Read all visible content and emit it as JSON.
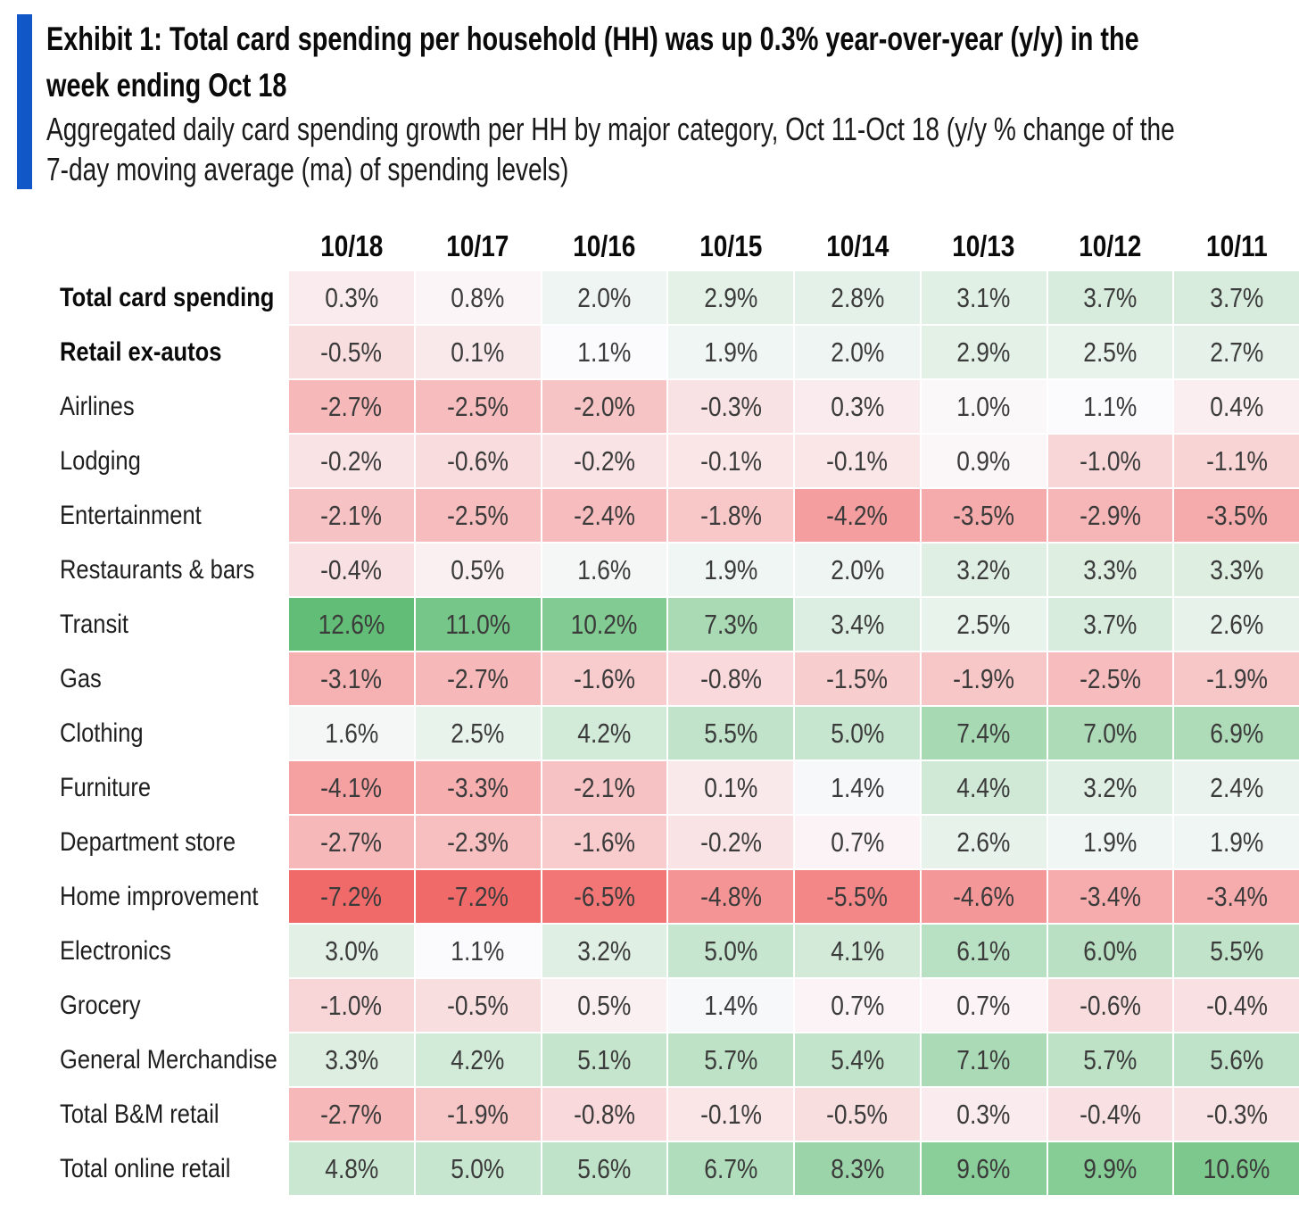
{
  "header": {
    "title_lines": [
      "Exhibit 1: Total card spending per household (HH) was up 0.3% year-over-year (y/y) in the",
      "week ending Oct 18"
    ],
    "subtitle_lines": [
      "Aggregated daily card spending growth per HH by major category, Oct 11-Oct 18 (y/y % change of the",
      "7-day moving average (ma) of spending levels)"
    ],
    "accent_color": "#1257c8"
  },
  "chart_data": {
    "type": "heatmap",
    "title": "Exhibit 1: Total card spending per household (HH) was up 0.3% year-over-year (y/y) in the week ending Oct 18",
    "subtitle": "Aggregated daily card spending growth per HH by major category, Oct 11-Oct 18 (y/y % change of the 7-day moving average (ma) of spending levels)",
    "unit": "% y/y change",
    "value_suffix": "%",
    "columns": [
      "10/18",
      "10/17",
      "10/16",
      "10/15",
      "10/14",
      "10/13",
      "10/12",
      "10/11"
    ],
    "rows": [
      {
        "label": "Total card spending",
        "bold": true,
        "values": [
          0.3,
          0.8,
          2.0,
          2.9,
          2.8,
          3.1,
          3.7,
          3.7
        ]
      },
      {
        "label": "Retail ex-autos",
        "bold": true,
        "values": [
          -0.5,
          0.1,
          1.1,
          1.9,
          2.0,
          2.9,
          2.5,
          2.7
        ]
      },
      {
        "label": "Airlines",
        "bold": false,
        "values": [
          -2.7,
          -2.5,
          -2.0,
          -0.3,
          0.3,
          1.0,
          1.1,
          0.4
        ]
      },
      {
        "label": "Lodging",
        "bold": false,
        "values": [
          -0.2,
          -0.6,
          -0.2,
          -0.1,
          -0.1,
          0.9,
          -1.0,
          -1.1
        ]
      },
      {
        "label": "Entertainment",
        "bold": false,
        "values": [
          -2.1,
          -2.5,
          -2.4,
          -1.8,
          -4.2,
          -3.5,
          -2.9,
          -3.5
        ]
      },
      {
        "label": "Restaurants & bars",
        "bold": false,
        "values": [
          -0.4,
          0.5,
          1.6,
          1.9,
          2.0,
          3.2,
          3.3,
          3.3
        ]
      },
      {
        "label": "Transit",
        "bold": false,
        "values": [
          12.6,
          11.0,
          10.2,
          7.3,
          3.4,
          2.5,
          3.7,
          2.6
        ]
      },
      {
        "label": "Gas",
        "bold": false,
        "values": [
          -3.1,
          -2.7,
          -1.6,
          -0.8,
          -1.5,
          -1.9,
          -2.5,
          -1.9
        ]
      },
      {
        "label": "Clothing",
        "bold": false,
        "values": [
          1.6,
          2.5,
          4.2,
          5.5,
          5.0,
          7.4,
          7.0,
          6.9
        ]
      },
      {
        "label": "Furniture",
        "bold": false,
        "values": [
          -4.1,
          -3.3,
          -2.1,
          0.1,
          1.4,
          4.4,
          3.2,
          2.4
        ]
      },
      {
        "label": "Department store",
        "bold": false,
        "values": [
          -2.7,
          -2.3,
          -1.6,
          -0.2,
          0.7,
          2.6,
          1.9,
          1.9
        ]
      },
      {
        "label": "Home improvement",
        "bold": false,
        "values": [
          -7.2,
          -7.2,
          -6.5,
          -4.8,
          -5.5,
          -4.6,
          -3.4,
          -3.4
        ]
      },
      {
        "label": "Electronics",
        "bold": false,
        "values": [
          3.0,
          1.1,
          3.2,
          5.0,
          4.1,
          6.1,
          6.0,
          5.5
        ]
      },
      {
        "label": "Grocery",
        "bold": false,
        "values": [
          -1.0,
          -0.5,
          0.5,
          1.4,
          0.7,
          0.7,
          -0.6,
          -0.4
        ]
      },
      {
        "label": "General Merchandise",
        "bold": false,
        "values": [
          3.3,
          4.2,
          5.1,
          5.7,
          5.4,
          7.1,
          5.7,
          5.6
        ]
      },
      {
        "label": "Total B&M retail",
        "bold": false,
        "values": [
          -2.7,
          -1.9,
          -0.8,
          -0.1,
          -0.5,
          0.3,
          -0.4,
          -0.3
        ]
      },
      {
        "label": "Total online retail",
        "bold": false,
        "values": [
          4.8,
          5.0,
          5.6,
          6.7,
          8.3,
          9.6,
          9.9,
          10.6
        ]
      }
    ],
    "color_scale": {
      "min": -7.2,
      "mid": 1.1,
      "max": 12.6,
      "min_color": "#f16a6a",
      "mid_color": "#fbfafc",
      "max_color": "#62be76"
    },
    "legend_position": "none",
    "grid": false
  }
}
